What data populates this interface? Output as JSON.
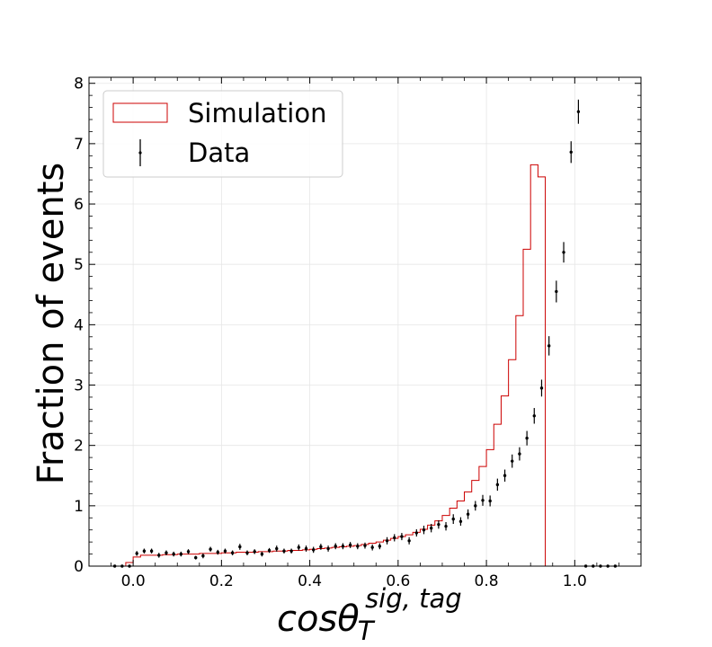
{
  "chart_data": {
    "type": "histogram",
    "xlabel": {
      "base": "cosθ",
      "subscript": "T",
      "superscript": "sig, tag"
    },
    "ylabel": "Fraction of events",
    "xlim": [
      -0.1,
      1.15
    ],
    "ylim": [
      0,
      8.1
    ],
    "xticks": [
      0.0,
      0.2,
      0.4,
      0.6,
      0.8,
      1.0
    ],
    "xtick_labels": [
      "0.0",
      "0.2",
      "0.4",
      "0.6",
      "0.8",
      "1.0"
    ],
    "yticks": [
      0,
      1,
      2,
      3,
      4,
      5,
      6,
      7,
      8
    ],
    "ytick_labels": [
      "0",
      "1",
      "2",
      "3",
      "4",
      "5",
      "6",
      "7",
      "8"
    ],
    "grid": true,
    "legend_position": "upper-left",
    "legend": [
      {
        "label": "Simulation",
        "type": "step",
        "color": "#cc0000"
      },
      {
        "label": "Data",
        "type": "errorbar",
        "color": "#000000"
      }
    ],
    "bin_width": 0.0167,
    "simulation": {
      "name": "Simulation",
      "bin_edges": [
        -0.05,
        -0.0333,
        -0.0167,
        0.0,
        0.0167,
        0.0333,
        0.05,
        0.0667,
        0.0833,
        0.1,
        0.1167,
        0.1333,
        0.15,
        0.1667,
        0.1833,
        0.2,
        0.2167,
        0.2333,
        0.25,
        0.2667,
        0.2833,
        0.3,
        0.3167,
        0.3333,
        0.35,
        0.3667,
        0.3833,
        0.4,
        0.4167,
        0.4333,
        0.45,
        0.4667,
        0.4833,
        0.5,
        0.5167,
        0.5333,
        0.55,
        0.5667,
        0.5833,
        0.6,
        0.6167,
        0.6333,
        0.65,
        0.6667,
        0.6833,
        0.7,
        0.7167,
        0.7333,
        0.75,
        0.7667,
        0.7833,
        0.8,
        0.8167,
        0.8333,
        0.85,
        0.8667,
        0.8833,
        0.9,
        0.9167,
        0.9333,
        0.95,
        0.9667,
        0.9833,
        1.0,
        1.0167
      ],
      "values": [
        0.0,
        0.0,
        0.06,
        0.15,
        0.18,
        0.18,
        0.18,
        0.19,
        0.19,
        0.2,
        0.2,
        0.2,
        0.21,
        0.21,
        0.21,
        0.22,
        0.22,
        0.23,
        0.23,
        0.23,
        0.24,
        0.24,
        0.25,
        0.25,
        0.26,
        0.26,
        0.27,
        0.28,
        0.29,
        0.3,
        0.31,
        0.32,
        0.33,
        0.34,
        0.36,
        0.38,
        0.4,
        0.43,
        0.46,
        0.49,
        0.52,
        0.56,
        0.61,
        0.68,
        0.75,
        0.84,
        0.96,
        1.08,
        1.23,
        1.42,
        1.65,
        1.93,
        2.35,
        2.82,
        3.42,
        4.15,
        5.25,
        6.65,
        6.45,
        0.0,
        0.0,
        0.0,
        0.0,
        0.0
      ]
    },
    "data": {
      "name": "Data",
      "x": [
        -0.0417,
        -0.025,
        -0.0083,
        0.0083,
        0.025,
        0.0417,
        0.0583,
        0.075,
        0.0917,
        0.1083,
        0.125,
        0.1417,
        0.1583,
        0.175,
        0.1917,
        0.2083,
        0.225,
        0.2417,
        0.2583,
        0.275,
        0.2917,
        0.3083,
        0.325,
        0.3417,
        0.3583,
        0.375,
        0.3917,
        0.4083,
        0.425,
        0.4417,
        0.4583,
        0.475,
        0.4917,
        0.5083,
        0.525,
        0.5417,
        0.5583,
        0.575,
        0.5917,
        0.6083,
        0.625,
        0.6417,
        0.6583,
        0.675,
        0.6917,
        0.7083,
        0.725,
        0.7417,
        0.7583,
        0.775,
        0.7917,
        0.8083,
        0.825,
        0.8417,
        0.8583,
        0.875,
        0.8917,
        0.9083,
        0.925,
        0.9417,
        0.9583,
        0.975,
        0.9917,
        1.0083,
        1.025,
        1.0417,
        1.0583,
        1.075,
        1.0917
      ],
      "y": [
        0.0,
        0.0,
        0.0,
        0.21,
        0.25,
        0.25,
        0.18,
        0.22,
        0.2,
        0.2,
        0.24,
        0.14,
        0.17,
        0.28,
        0.23,
        0.25,
        0.22,
        0.32,
        0.22,
        0.24,
        0.2,
        0.26,
        0.29,
        0.25,
        0.25,
        0.31,
        0.29,
        0.27,
        0.32,
        0.29,
        0.33,
        0.33,
        0.35,
        0.33,
        0.34,
        0.31,
        0.33,
        0.42,
        0.47,
        0.49,
        0.42,
        0.55,
        0.6,
        0.63,
        0.69,
        0.66,
        0.78,
        0.74,
        0.86,
        1.0,
        1.09,
        1.08,
        1.35,
        1.5,
        1.74,
        1.86,
        2.12,
        2.49,
        2.95,
        3.65,
        4.55,
        5.2,
        6.86,
        7.53,
        0.0,
        0.0,
        0.0,
        0.0,
        0.0
      ],
      "yerr": [
        0.0,
        0.0,
        0.0,
        0.04,
        0.04,
        0.04,
        0.04,
        0.04,
        0.04,
        0.04,
        0.04,
        0.03,
        0.04,
        0.04,
        0.04,
        0.04,
        0.04,
        0.05,
        0.04,
        0.04,
        0.04,
        0.04,
        0.05,
        0.04,
        0.04,
        0.05,
        0.05,
        0.05,
        0.05,
        0.05,
        0.05,
        0.05,
        0.05,
        0.05,
        0.05,
        0.05,
        0.05,
        0.06,
        0.06,
        0.06,
        0.06,
        0.06,
        0.07,
        0.07,
        0.07,
        0.07,
        0.08,
        0.07,
        0.08,
        0.08,
        0.09,
        0.09,
        0.1,
        0.1,
        0.11,
        0.11,
        0.12,
        0.13,
        0.14,
        0.16,
        0.18,
        0.17,
        0.18,
        0.2,
        0.0,
        0.0,
        0.0,
        0.0,
        0.0
      ]
    }
  }
}
